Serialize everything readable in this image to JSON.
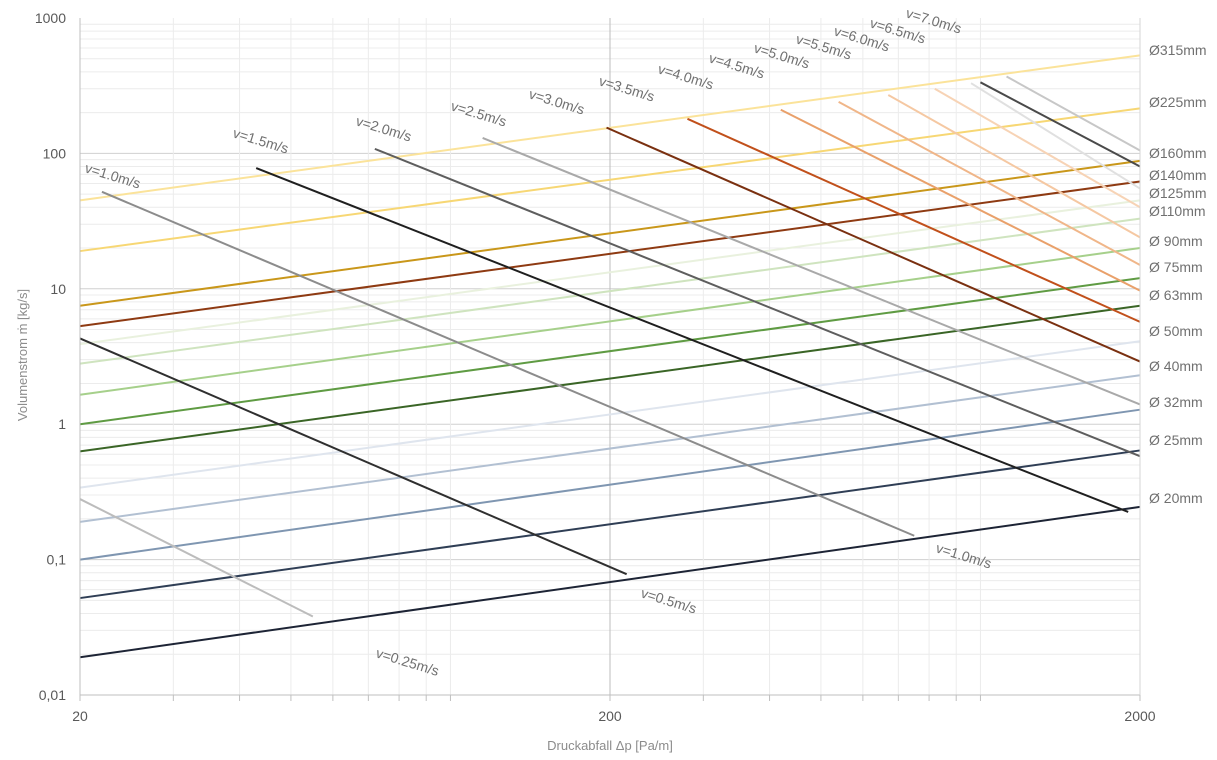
{
  "chart_data": {
    "type": "line",
    "x_scale": "log",
    "y_scale": "log",
    "xlim": [
      20,
      2000
    ],
    "ylim": [
      0.01,
      1000
    ],
    "xlabel": "Druckabfall Δp [Pa/m]",
    "ylabel": "Volumenstrom ṁ [kg/s]",
    "x_ticks": [
      "20",
      "200",
      "2000"
    ],
    "y_ticks": [
      "0,01",
      "0,1",
      "1",
      "10",
      "100",
      "1000"
    ],
    "grid": true,
    "diameter_series": [
      {
        "name": "Ø315mm",
        "color": "#fbe39a",
        "y_at_20": 45,
        "y_at_2000": 530
      },
      {
        "name": "Ø225mm",
        "color": "#f7d774",
        "y_at_20": 19,
        "y_at_2000": 215
      },
      {
        "name": "Ø160mm",
        "color": "#c9971a",
        "y_at_20": 7.5,
        "y_at_2000": 88
      },
      {
        "name": "Ø140mm",
        "color": "#8e3a12",
        "y_at_20": 5.3,
        "y_at_2000": 62
      },
      {
        "name": "Ø125mm",
        "color": "#e9f1de",
        "y_at_20": 3.9,
        "y_at_2000": 45
      },
      {
        "name": "Ø110mm",
        "color": "#cfe4bf",
        "y_at_20": 2.8,
        "y_at_2000": 33
      },
      {
        "name": "Ø 90mm",
        "color": "#a6d08b",
        "y_at_20": 1.65,
        "y_at_2000": 20
      },
      {
        "name": "Ø 75mm",
        "color": "#5f9b43",
        "y_at_20": 1.0,
        "y_at_2000": 12
      },
      {
        "name": "Ø 63mm",
        "color": "#3a6526",
        "y_at_20": 0.63,
        "y_at_2000": 7.5
      },
      {
        "name": "Ø 50mm",
        "color": "#dfe5ee",
        "y_at_20": 0.34,
        "y_at_2000": 4.1
      },
      {
        "name": "Ø 40mm",
        "color": "#b2c0d2",
        "y_at_20": 0.19,
        "y_at_2000": 2.3
      },
      {
        "name": "Ø 32mm",
        "color": "#7f96b1",
        "y_at_20": 0.1,
        "y_at_2000": 1.28
      },
      {
        "name": "Ø 25mm",
        "color": "#2f3e55",
        "y_at_20": 0.052,
        "y_at_2000": 0.64
      },
      {
        "name": "Ø 20mm",
        "color": "#1d2435",
        "y_at_20": 0.019,
        "y_at_2000": 0.245
      }
    ],
    "velocity_series": [
      {
        "name": "v=0.25m/s",
        "color": "#bcbcbc",
        "from": [
          20,
          0.28
        ],
        "to": [
          55,
          0.038
        ]
      },
      {
        "name": "v=0.5m/s",
        "color": "#2f2f2f",
        "from": [
          20,
          4.3
        ],
        "to": [
          215,
          0.078
        ]
      },
      {
        "name": "v=1.0m/s",
        "color": "#8c8c8c",
        "from": [
          22,
          52
        ],
        "to": [
          750,
          0.15
        ]
      },
      {
        "name": "v=1.5m/s",
        "color": "#1f1f1f",
        "from": [
          43,
          78
        ],
        "to": [
          1900,
          0.225
        ]
      },
      {
        "name": "v=2.0m/s",
        "color": "#5e5e5e",
        "from": [
          72,
          108
        ],
        "to": [
          2000,
          0.58
        ]
      },
      {
        "name": "v=2.5m/s",
        "color": "#a9a9a9",
        "from": [
          115,
          130
        ],
        "to": [
          2000,
          1.4
        ]
      },
      {
        "name": "v=3.0m/s",
        "color": "#7a3010",
        "from": [
          197,
          155
        ],
        "to": [
          2000,
          2.9
        ]
      },
      {
        "name": "v=3.5m/s",
        "color": "#c1501b",
        "from": [
          280,
          180
        ],
        "to": [
          2000,
          5.7
        ]
      },
      {
        "name": "v=4.0m/s",
        "color": "#e9a06a",
        "from": [
          420,
          210
        ],
        "to": [
          2000,
          9.7
        ]
      },
      {
        "name": "v=4.5m/s",
        "color": "#f0b689",
        "from": [
          540,
          240
        ],
        "to": [
          2000,
          15
        ]
      },
      {
        "name": "v=5.0m/s",
        "color": "#f5c8a2",
        "from": [
          670,
          270
        ],
        "to": [
          2000,
          24
        ]
      },
      {
        "name": "v=5.5m/s",
        "color": "#f7d3b5",
        "from": [
          820,
          300
        ],
        "to": [
          2000,
          40
        ]
      },
      {
        "name": "v=6.0m/s",
        "color": "#e0e0e0",
        "from": [
          960,
          330
        ],
        "to": [
          2000,
          55
        ]
      },
      {
        "name": "v=6.5m/s",
        "color": "#4a4a4a",
        "from": [
          1000,
          335
        ],
        "to": [
          2000,
          80
        ]
      },
      {
        "name": "v=7.0m/s",
        "color": "#c7c7c7",
        "from": [
          1120,
          370
        ],
        "to": [
          2000,
          105
        ]
      }
    ]
  }
}
